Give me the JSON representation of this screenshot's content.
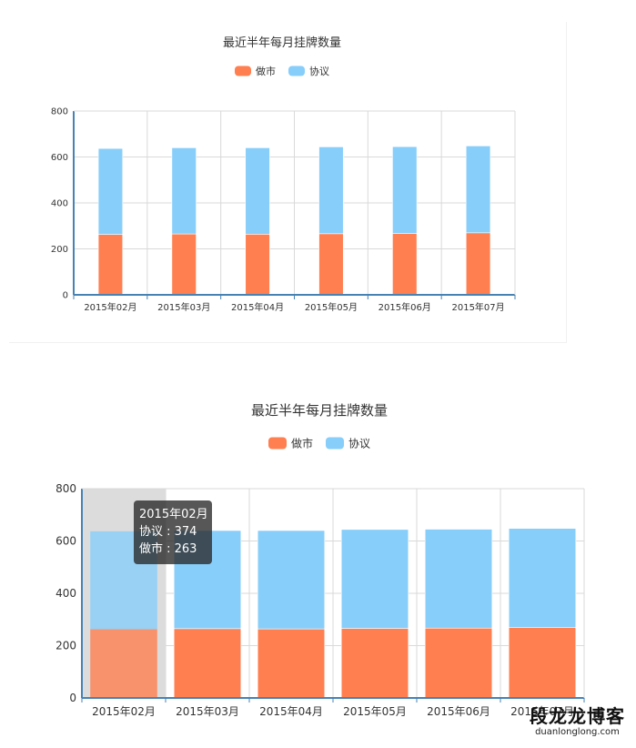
{
  "chart_data": [
    {
      "type": "bar",
      "stacked": true,
      "title": "最近半年每月挂牌数量",
      "legend": [
        "做市",
        "协议"
      ],
      "legend_position": "top-center",
      "categories": [
        "2015年02月",
        "2015年03月",
        "2015年04月",
        "2015年05月",
        "2015年06月",
        "2015年07月"
      ],
      "series": [
        {
          "name": "做市",
          "color": "#ff7f50",
          "values": [
            263,
            265,
            264,
            266,
            267,
            270
          ]
        },
        {
          "name": "协议",
          "color": "#87cefa",
          "values": [
            374,
            375,
            376,
            378,
            378,
            378
          ]
        }
      ],
      "yticks": [
        0,
        200,
        400,
        600,
        800
      ],
      "ylim": [
        0,
        800
      ],
      "grid": true
    },
    {
      "type": "bar",
      "stacked": true,
      "title": "最近半年每月挂牌数量",
      "legend": [
        "做市",
        "协议"
      ],
      "legend_position": "top-center",
      "categories": [
        "2015年02月",
        "2015年03月",
        "2015年04月",
        "2015年05月",
        "2015年06月",
        "2015年07月"
      ],
      "series": [
        {
          "name": "做市",
          "color": "#ff7f50",
          "values": [
            263,
            265,
            264,
            266,
            267,
            270
          ]
        },
        {
          "name": "协议",
          "color": "#87cefa",
          "values": [
            374,
            375,
            376,
            378,
            378,
            378
          ]
        }
      ],
      "yticks": [
        0,
        200,
        400,
        600,
        800
      ],
      "ylim": [
        0,
        800
      ],
      "grid": true,
      "highlighted_category": "2015年02月",
      "tooltip": {
        "title": "2015年02月",
        "lines": [
          {
            "label": "协议",
            "value": "374"
          },
          {
            "label": "做市",
            "value": "263"
          }
        ]
      }
    }
  ],
  "watermark": {
    "cn": "段龙龙博客",
    "en": "duanlonglong.com"
  }
}
